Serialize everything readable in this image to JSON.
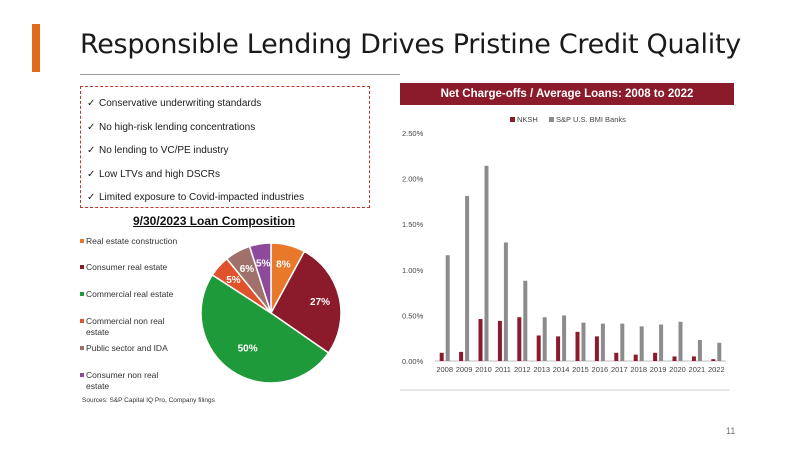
{
  "slide": {
    "title": "Responsible Lending Drives Pristine Credit Quality",
    "page_number": "11",
    "sources": "Sources: S&P Capital IQ Pro, Company filings"
  },
  "bullets": [
    "Conservative underwriting standards",
    "No high-risk lending concentrations",
    "No lending to VC/PE industry",
    "Low LTVs and high DSCRs",
    "Limited exposure to Covid-impacted industries"
  ],
  "check_glyph": "✓",
  "chart_data": [
    {
      "type": "pie",
      "title": "9/30/2023 Loan Composition",
      "labels": [
        "Real estate construction",
        "Consumer real estate",
        "Commercial real estate",
        "Commercial non real estate",
        "Public sector and IDA",
        "Consumer non real estate"
      ],
      "legend_lines": [
        [
          "Real estate construction"
        ],
        [
          "Consumer real estate"
        ],
        [
          "Commercial real estate"
        ],
        [
          "Commercial non real",
          "estate"
        ],
        [
          "Public sector and IDA"
        ],
        [
          "Consumer non real",
          "estate"
        ]
      ],
      "values": [
        8,
        27,
        50,
        5,
        6,
        5
      ],
      "value_labels": [
        "8%",
        "27%",
        "50%",
        "5%",
        "6%",
        "5%"
      ],
      "colors": [
        "#e8792b",
        "#8b1a2b",
        "#1e9a3a",
        "#e0522b",
        "#a0706a",
        "#8e4a9a"
      ],
      "legend_placement": "left"
    },
    {
      "type": "bar",
      "title": "Net Charge-offs / Average Loans: 2008 to 2022",
      "categories": [
        "2008",
        "2009",
        "2010",
        "2011",
        "2012",
        "2013",
        "2014",
        "2015",
        "2016",
        "2017",
        "2018",
        "2019",
        "2020",
        "2021",
        "2022"
      ],
      "series": [
        {
          "name": "NKSH",
          "color": "#8b1a2b",
          "values": [
            0.09,
            0.1,
            0.46,
            0.44,
            0.48,
            0.28,
            0.27,
            0.32,
            0.27,
            0.09,
            0.07,
            0.09,
            0.05,
            0.05,
            0.02
          ]
        },
        {
          "name": "S&P U.S. BMI Banks",
          "color": "#8c8c8c",
          "values": [
            1.16,
            1.81,
            2.14,
            1.3,
            0.88,
            0.48,
            0.5,
            0.42,
            0.41,
            0.41,
            0.38,
            0.4,
            0.43,
            0.23,
            0.2
          ]
        }
      ],
      "ylim": [
        0,
        2.5
      ],
      "yticks": [
        "0.00%",
        "0.50%",
        "1.00%",
        "1.50%",
        "2.00%",
        "2.50%"
      ],
      "grid": false,
      "legend_placement": "top"
    }
  ]
}
